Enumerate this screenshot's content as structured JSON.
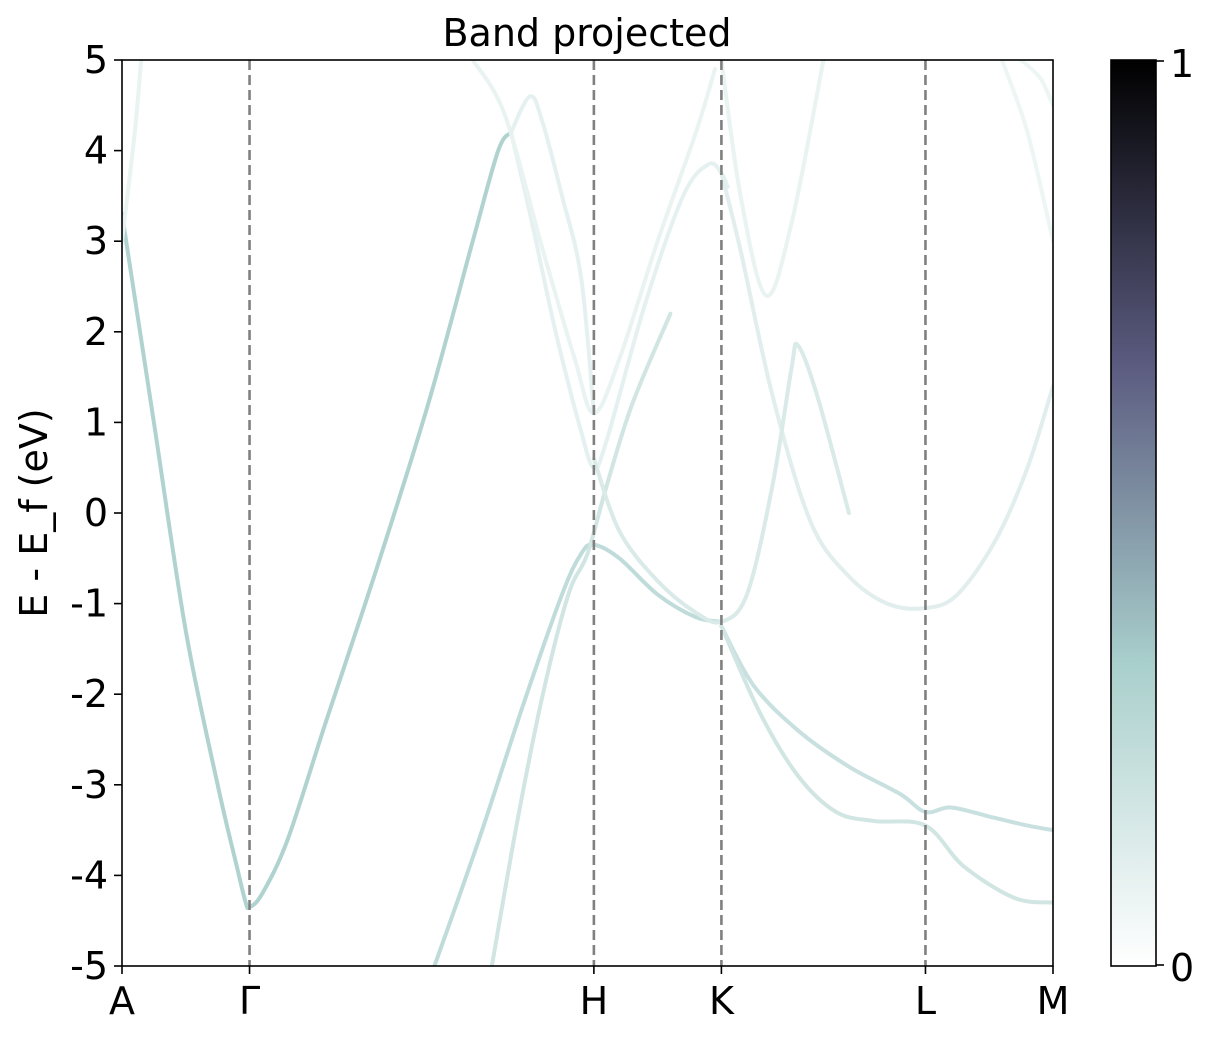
{
  "chart_data": {
    "type": "line",
    "title": "Band projected",
    "ylabel": "E - E_f (eV)",
    "xlabel": "",
    "ylim": [
      -5,
      5
    ],
    "xlim": [
      0,
      7.3
    ],
    "y_ticks": [
      {
        "value": 5,
        "label": "5"
      },
      {
        "value": 4,
        "label": "4"
      },
      {
        "value": 3,
        "label": "3"
      },
      {
        "value": 2,
        "label": "2"
      },
      {
        "value": 1,
        "label": "1"
      },
      {
        "value": 0,
        "label": "0"
      },
      {
        "value": -1,
        "label": "-1"
      },
      {
        "value": -2,
        "label": "-2"
      },
      {
        "value": -3,
        "label": "-3"
      },
      {
        "value": -4,
        "label": "-4"
      },
      {
        "value": -5,
        "label": "-5"
      }
    ],
    "kpoints": [
      {
        "label": "A",
        "x": 0
      },
      {
        "label": "Γ",
        "x": 1.0
      },
      {
        "label": "H",
        "x": 3.7
      },
      {
        "label": "K",
        "x": 4.7
      },
      {
        "label": "L",
        "x": 6.3
      },
      {
        "label": "M",
        "x": 7.3
      }
    ],
    "grid": false,
    "colorbar": {
      "min": 0,
      "max": 1,
      "min_label": "0",
      "max_label": "1",
      "colormap": [
        "#ffffff",
        "#a9cfcc",
        "#5a5a7f",
        "#000000"
      ]
    },
    "series": [
      {
        "weight": 0.18,
        "points": [
          [
            0,
            3.3
          ],
          [
            0.25,
            1.0
          ],
          [
            0.5,
            -1.3
          ],
          [
            0.75,
            -3.0
          ],
          [
            0.9,
            -3.9
          ],
          [
            0.97,
            -4.3
          ],
          [
            1.0,
            -4.35
          ],
          [
            1.1,
            -4.2
          ],
          [
            1.3,
            -3.6
          ],
          [
            1.6,
            -2.3
          ],
          [
            2.0,
            -0.6
          ],
          [
            2.4,
            1.2
          ],
          [
            2.75,
            3.0
          ],
          [
            2.95,
            4.0
          ],
          [
            3.05,
            4.2
          ]
        ]
      },
      {
        "weight": 0.04,
        "points": [
          [
            0,
            3.0
          ],
          [
            0.1,
            4.2
          ],
          [
            0.15,
            5.0
          ]
        ]
      },
      {
        "weight": 0.05,
        "points": [
          [
            3.05,
            4.2
          ],
          [
            3.2,
            3.3
          ],
          [
            3.4,
            2.0
          ],
          [
            3.6,
            0.9
          ],
          [
            3.7,
            0.5
          ],
          [
            3.8,
            0.8
          ],
          [
            4.1,
            2.3
          ],
          [
            4.4,
            3.5
          ],
          [
            4.6,
            3.85
          ],
          [
            4.7,
            3.75
          ],
          [
            4.75,
            3.6
          ]
        ]
      },
      {
        "weight": 0.06,
        "points": [
          [
            4.7,
            3.75
          ],
          [
            4.85,
            2.9
          ],
          [
            5.1,
            1.3
          ],
          [
            5.4,
            -0.1
          ],
          [
            5.7,
            -0.7
          ],
          [
            6.0,
            -1.0
          ],
          [
            6.3,
            -1.05
          ],
          [
            6.55,
            -0.9
          ],
          [
            6.85,
            -0.3
          ],
          [
            7.1,
            0.5
          ],
          [
            7.3,
            1.4
          ]
        ]
      },
      {
        "weight": 0.04,
        "points": [
          [
            2.75,
            5.0
          ],
          [
            3.0,
            4.4
          ],
          [
            3.3,
            2.9
          ],
          [
            3.55,
            1.7
          ],
          [
            3.7,
            1.1
          ],
          [
            3.9,
            1.7
          ],
          [
            4.2,
            3.0
          ],
          [
            4.5,
            4.2
          ],
          [
            4.65,
            4.9
          ]
        ]
      },
      {
        "weight": 0.04,
        "points": [
          [
            4.7,
            5.0
          ],
          [
            4.85,
            3.5
          ],
          [
            5.05,
            2.4
          ],
          [
            5.25,
            3.2
          ],
          [
            5.5,
            5.0
          ]
        ]
      },
      {
        "weight": 0.05,
        "points": [
          [
            3.05,
            4.2
          ],
          [
            3.2,
            4.6
          ],
          [
            3.3,
            4.3
          ],
          [
            3.45,
            3.5
          ],
          [
            3.6,
            2.6
          ],
          [
            3.7,
            1.1
          ]
        ]
      },
      {
        "weight": 0.03,
        "points": [
          [
            7.05,
            5.0
          ],
          [
            7.2,
            4.8
          ],
          [
            7.3,
            4.5
          ]
        ]
      },
      {
        "weight": 0.03,
        "points": [
          [
            6.9,
            5.0
          ],
          [
            7.1,
            4.2
          ],
          [
            7.3,
            3.0
          ]
        ]
      },
      {
        "weight": 0.14,
        "points": [
          [
            2.45,
            -5.0
          ],
          [
            2.8,
            -3.6
          ],
          [
            3.15,
            -2.1
          ],
          [
            3.45,
            -0.9
          ],
          [
            3.6,
            -0.45
          ],
          [
            3.7,
            -0.35
          ],
          [
            3.9,
            -0.5
          ],
          [
            4.2,
            -0.9
          ],
          [
            4.5,
            -1.15
          ],
          [
            4.7,
            -1.2
          ]
        ]
      },
      {
        "weight": 0.1,
        "points": [
          [
            2.9,
            -5.0
          ],
          [
            3.1,
            -3.4
          ],
          [
            3.3,
            -2.0
          ],
          [
            3.5,
            -0.9
          ],
          [
            3.65,
            -0.45
          ],
          [
            3.8,
            0.3
          ],
          [
            4.0,
            1.2
          ],
          [
            4.3,
            2.2
          ]
        ]
      },
      {
        "weight": 0.08,
        "points": [
          [
            3.7,
            0.6
          ],
          [
            3.9,
            -0.2
          ],
          [
            4.2,
            -0.75
          ],
          [
            4.5,
            -1.1
          ],
          [
            4.7,
            -1.2
          ],
          [
            4.9,
            -0.9
          ],
          [
            5.1,
            0.3
          ],
          [
            5.25,
            1.6
          ],
          [
            5.3,
            1.85
          ],
          [
            5.45,
            1.3
          ],
          [
            5.7,
            0.0
          ]
        ]
      },
      {
        "weight": 0.12,
        "points": [
          [
            4.7,
            -1.25
          ],
          [
            4.95,
            -1.9
          ],
          [
            5.3,
            -2.4
          ],
          [
            5.7,
            -2.8
          ],
          [
            6.1,
            -3.1
          ],
          [
            6.3,
            -3.3
          ],
          [
            6.5,
            -3.25
          ],
          [
            6.8,
            -3.35
          ],
          [
            7.1,
            -3.45
          ],
          [
            7.3,
            -3.5
          ]
        ]
      },
      {
        "weight": 0.1,
        "points": [
          [
            4.7,
            -1.25
          ],
          [
            5.0,
            -2.2
          ],
          [
            5.3,
            -2.9
          ],
          [
            5.6,
            -3.3
          ],
          [
            5.9,
            -3.4
          ],
          [
            6.3,
            -3.45
          ],
          [
            6.6,
            -3.9
          ],
          [
            7.0,
            -4.25
          ],
          [
            7.3,
            -4.3
          ]
        ]
      }
    ]
  }
}
